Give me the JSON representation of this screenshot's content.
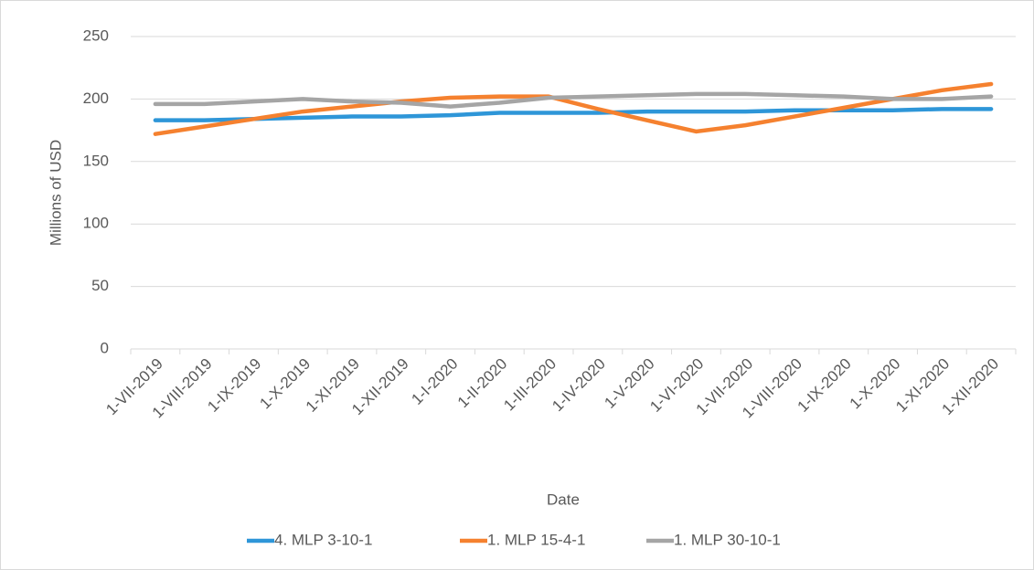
{
  "chart_data": {
    "type": "line",
    "x_label": "Date",
    "y_label": "Millions of USD",
    "categories": [
      "1-VII-2019",
      "1-VIII-2019",
      "1-IX-2019",
      "1-X-2019",
      "1-XI-2019",
      "1-XII-2019",
      "1-I-2020",
      "1-II-2020",
      "1-III-2020",
      "1-IV-2020",
      "1-V-2020",
      "1-VI-2020",
      "1-VII-2020",
      "1-VIII-2020",
      "1-IX-2020",
      "1-X-2020",
      "1-XI-2020",
      "1-XII-2020"
    ],
    "series": [
      {
        "name": "4. MLP 3-10-1",
        "color": "#2e96d8",
        "values": [
          183,
          183,
          184,
          185,
          186,
          186,
          187,
          189,
          189,
          189,
          190,
          190,
          190,
          191,
          191,
          191,
          192,
          192
        ]
      },
      {
        "name": "1. MLP 15-4-1",
        "color": "#f5812f",
        "values": [
          172,
          178,
          184,
          190,
          194,
          198,
          201,
          202,
          202,
          192,
          183,
          174,
          179,
          186,
          193,
          200,
          207,
          212
        ]
      },
      {
        "name": "1. MLP 30-10-1",
        "color": "#a5a5a5",
        "values": [
          196,
          196,
          198,
          200,
          198,
          197,
          194,
          197,
          201,
          202,
          203,
          204,
          204,
          203,
          202,
          200,
          200,
          202
        ]
      }
    ],
    "ylim": [
      0,
      250
    ],
    "yticks": [
      0,
      50,
      100,
      150,
      200,
      250
    ],
    "grid": true,
    "legend": "bottom"
  }
}
